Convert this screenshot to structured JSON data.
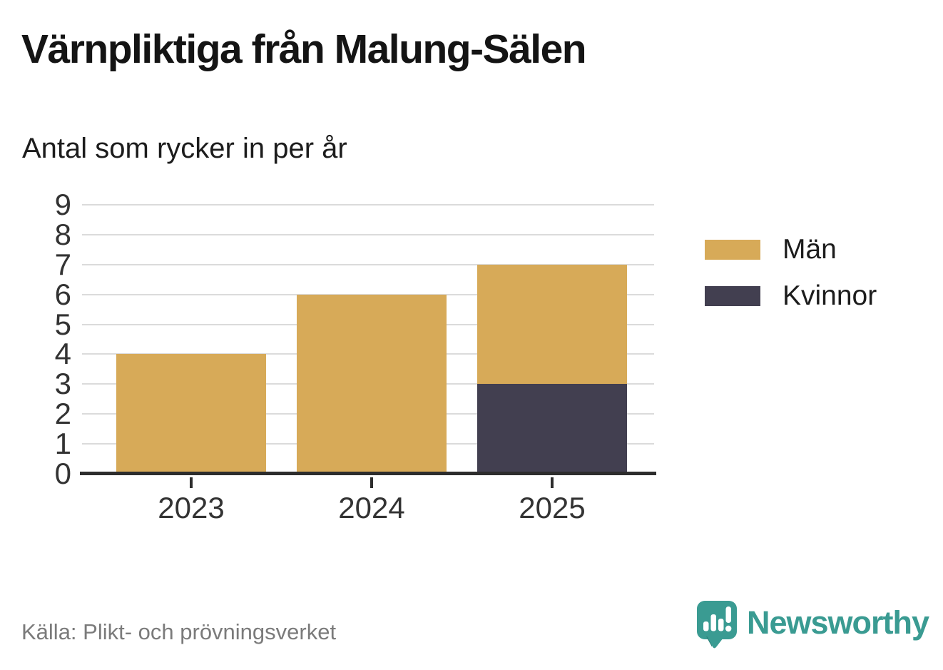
{
  "header": {
    "title": "Värnpliktiga från Malung-Sälen",
    "subtitle": "Antal som rycker in per år"
  },
  "legend": [
    {
      "label": "Män",
      "color": "#D7AA58"
    },
    {
      "label": "Kvinnor",
      "color": "#423F50"
    }
  ],
  "chart_data": {
    "type": "bar",
    "stacked": true,
    "title": "Värnpliktiga från Malung-Sälen",
    "subtitle": "Antal som rycker in per år",
    "categories": [
      "2023",
      "2024",
      "2025"
    ],
    "series": [
      {
        "name": "Kvinnor",
        "color": "#423F50",
        "values": [
          0,
          0,
          3
        ]
      },
      {
        "name": "Män",
        "color": "#D7AA58",
        "values": [
          4,
          6,
          4
        ]
      }
    ],
    "stack_order": "bottom-to-top",
    "totals": [
      4,
      6,
      7
    ],
    "xlabel": "",
    "ylabel": "",
    "ylim": [
      0,
      9
    ],
    "ytick_step": 1,
    "grid": true,
    "legend_position": "right"
  },
  "footer": {
    "source": "Källa: Plikt- och prövningsverket",
    "brand": "Newsworthy"
  },
  "colors": {
    "bar_gold": "#D7AA58",
    "bar_dark": "#423F50",
    "brand_teal": "#3A9B92",
    "brand_teal_dark": "#2F837C",
    "grid": "#DBDBDB",
    "axis": "#2D2D2D",
    "tick_text": "#333333",
    "source_text": "#7B7B7B"
  }
}
